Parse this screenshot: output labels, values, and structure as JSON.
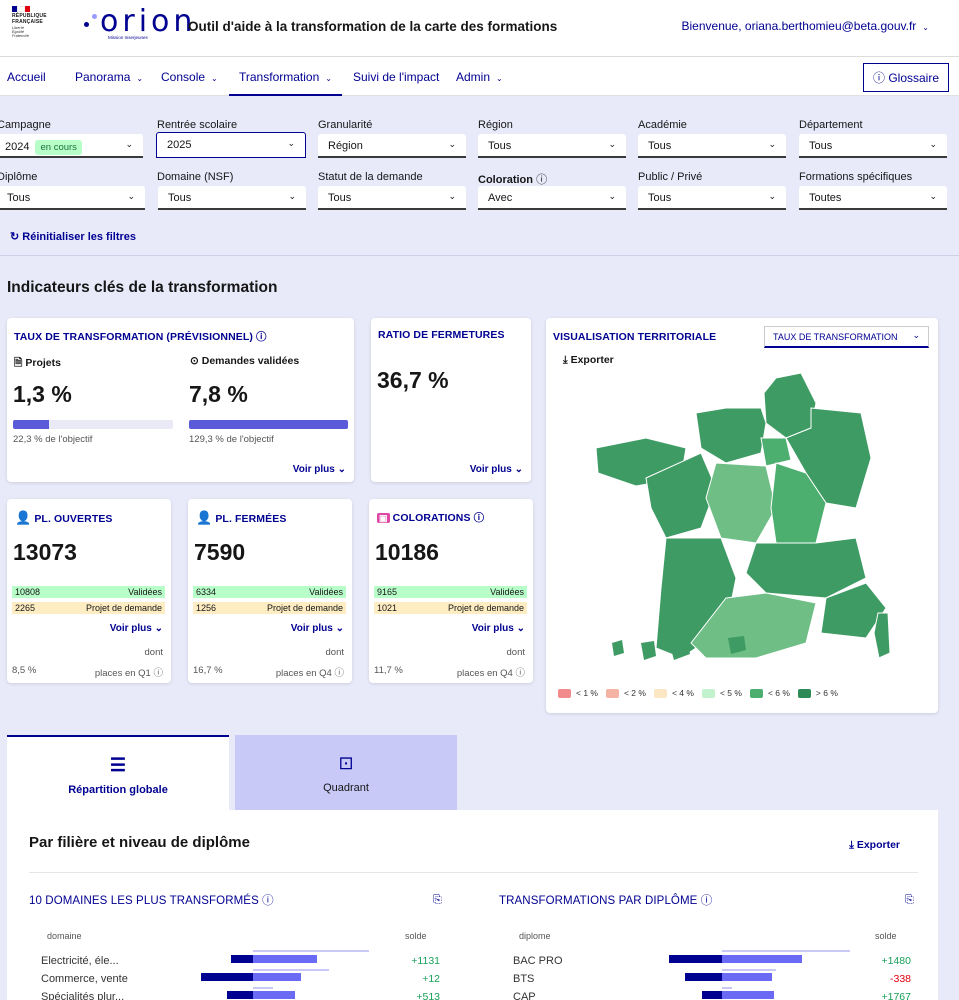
{
  "header": {
    "rf_lines": [
      "RÉPUBLIQUE",
      "FRANÇAISE"
    ],
    "rf_motto": [
      "Liberté",
      "Égalité",
      "Fraternité"
    ],
    "logo_word": "orion",
    "logo_sub": "Mission Inserjeunes",
    "app_title": "Outil d'aide à la transformation de la carte des formations",
    "welcome": "Bienvenue, oriana.berthomieu@beta.gouv.fr"
  },
  "nav": {
    "items": [
      "Accueil",
      "Panorama",
      "Console",
      "Transformation",
      "Suivi de l'impact",
      "Admin"
    ],
    "glossary": "Glossaire"
  },
  "filters": {
    "campagne": {
      "label": "Campagne",
      "value": "2024",
      "badge": "en cours"
    },
    "rentree": {
      "label": "Rentrée scolaire",
      "value": "2025"
    },
    "granularite": {
      "label": "Granularité",
      "value": "Région"
    },
    "region": {
      "label": "Région",
      "value": "Tous"
    },
    "academie": {
      "label": "Académie",
      "value": "Tous"
    },
    "departement": {
      "label": "Département",
      "value": "Tous"
    },
    "diplome": {
      "label": "Diplôme",
      "value": "Tous"
    },
    "domaine": {
      "label": "Domaine (NSF)",
      "value": "Tous"
    },
    "statut": {
      "label": "Statut de la demande",
      "value": "Tous"
    },
    "coloration": {
      "label": "Coloration",
      "value": "Avec"
    },
    "public": {
      "label": "Public / Privé",
      "value": "Tous"
    },
    "formations": {
      "label": "Formations spécifiques",
      "value": "Toutes"
    },
    "reset": "Réinitialiser les filtres"
  },
  "section_title": "Indicateurs clés de la transformation",
  "taux": {
    "title": "TAUX DE TRANSFORMATION (PRÉVISIONNEL)",
    "projets_label": "Projets",
    "projets_value": "1,3 %",
    "projets_objectif": "22,3 % de l'objectif",
    "projets_fill": 0.223,
    "valid_label": "Demandes validées",
    "valid_value": "7,8 %",
    "valid_objectif": "129,3 % de l'objectif",
    "valid_fill": 1.0,
    "voir_plus": "Voir plus"
  },
  "ratio": {
    "title": "RATIO DE FERMETURES",
    "value": "36,7 %",
    "voir_plus": "Voir plus"
  },
  "ouvertes": {
    "title": "PL. OUVERTES",
    "value": "13073",
    "validees_n": "10808",
    "validees": "Validées",
    "projet_n": "2265",
    "projet": "Projet de demande",
    "voir_plus": "Voir plus",
    "dont": "dont",
    "pct": "8,5 %",
    "places": "places en Q1"
  },
  "fermees": {
    "title": "PL. FERMÉES",
    "value": "7590",
    "validees_n": "6334",
    "validees": "Validées",
    "projet_n": "1256",
    "projet": "Projet de demande",
    "voir_plus": "Voir plus",
    "dont": "dont",
    "pct": "16,7 %",
    "places": "places en Q4"
  },
  "colorations": {
    "title": "COLORATIONS",
    "value": "10186",
    "validees_n": "9165",
    "validees": "Validées",
    "projet_n": "1021",
    "projet": "Projet de demande",
    "voir_plus": "Voir plus",
    "dont": "dont",
    "pct": "11,7 %",
    "places": "places en Q4"
  },
  "map": {
    "title": "VISUALISATION TERRITORIALE",
    "select": "TAUX DE TRANSFORMATION",
    "export": "Exporter",
    "legend": [
      {
        "label": "< 1 %",
        "color": "#f28b8b"
      },
      {
        "label": "< 2 %",
        "color": "#f5b3a3"
      },
      {
        "label": "< 4 %",
        "color": "#fbe7c4"
      },
      {
        "label": "< 5 %",
        "color": "#c3f2cf"
      },
      {
        "label": "< 6 %",
        "color": "#4caf70"
      },
      {
        "label": "> 6 %",
        "color": "#2e8b57"
      }
    ]
  },
  "tabs": {
    "repartition": "Répartition globale",
    "quadrant": "Quadrant"
  },
  "bottom": {
    "title": "Par filière et niveau de diplôme",
    "export": "Exporter",
    "left_title": "10 DOMAINES LES PLUS TRANSFORMÉS",
    "left_col": "domaine",
    "left_solde": "solde",
    "left_rows": [
      {
        "label": "Electricité, éle...",
        "solde": "+1131"
      },
      {
        "label": "Commerce, vente",
        "solde": "+12"
      },
      {
        "label": "Spécialités plur...",
        "solde": "+513"
      }
    ],
    "right_title": "TRANSFORMATIONS PAR DIPLÔME",
    "right_col": "diplome",
    "right_solde": "solde",
    "right_rows": [
      {
        "label": "BAC PRO",
        "solde": "+1480"
      },
      {
        "label": "BTS",
        "solde": "-338"
      },
      {
        "label": "CAP",
        "solde": "+1767"
      }
    ]
  }
}
